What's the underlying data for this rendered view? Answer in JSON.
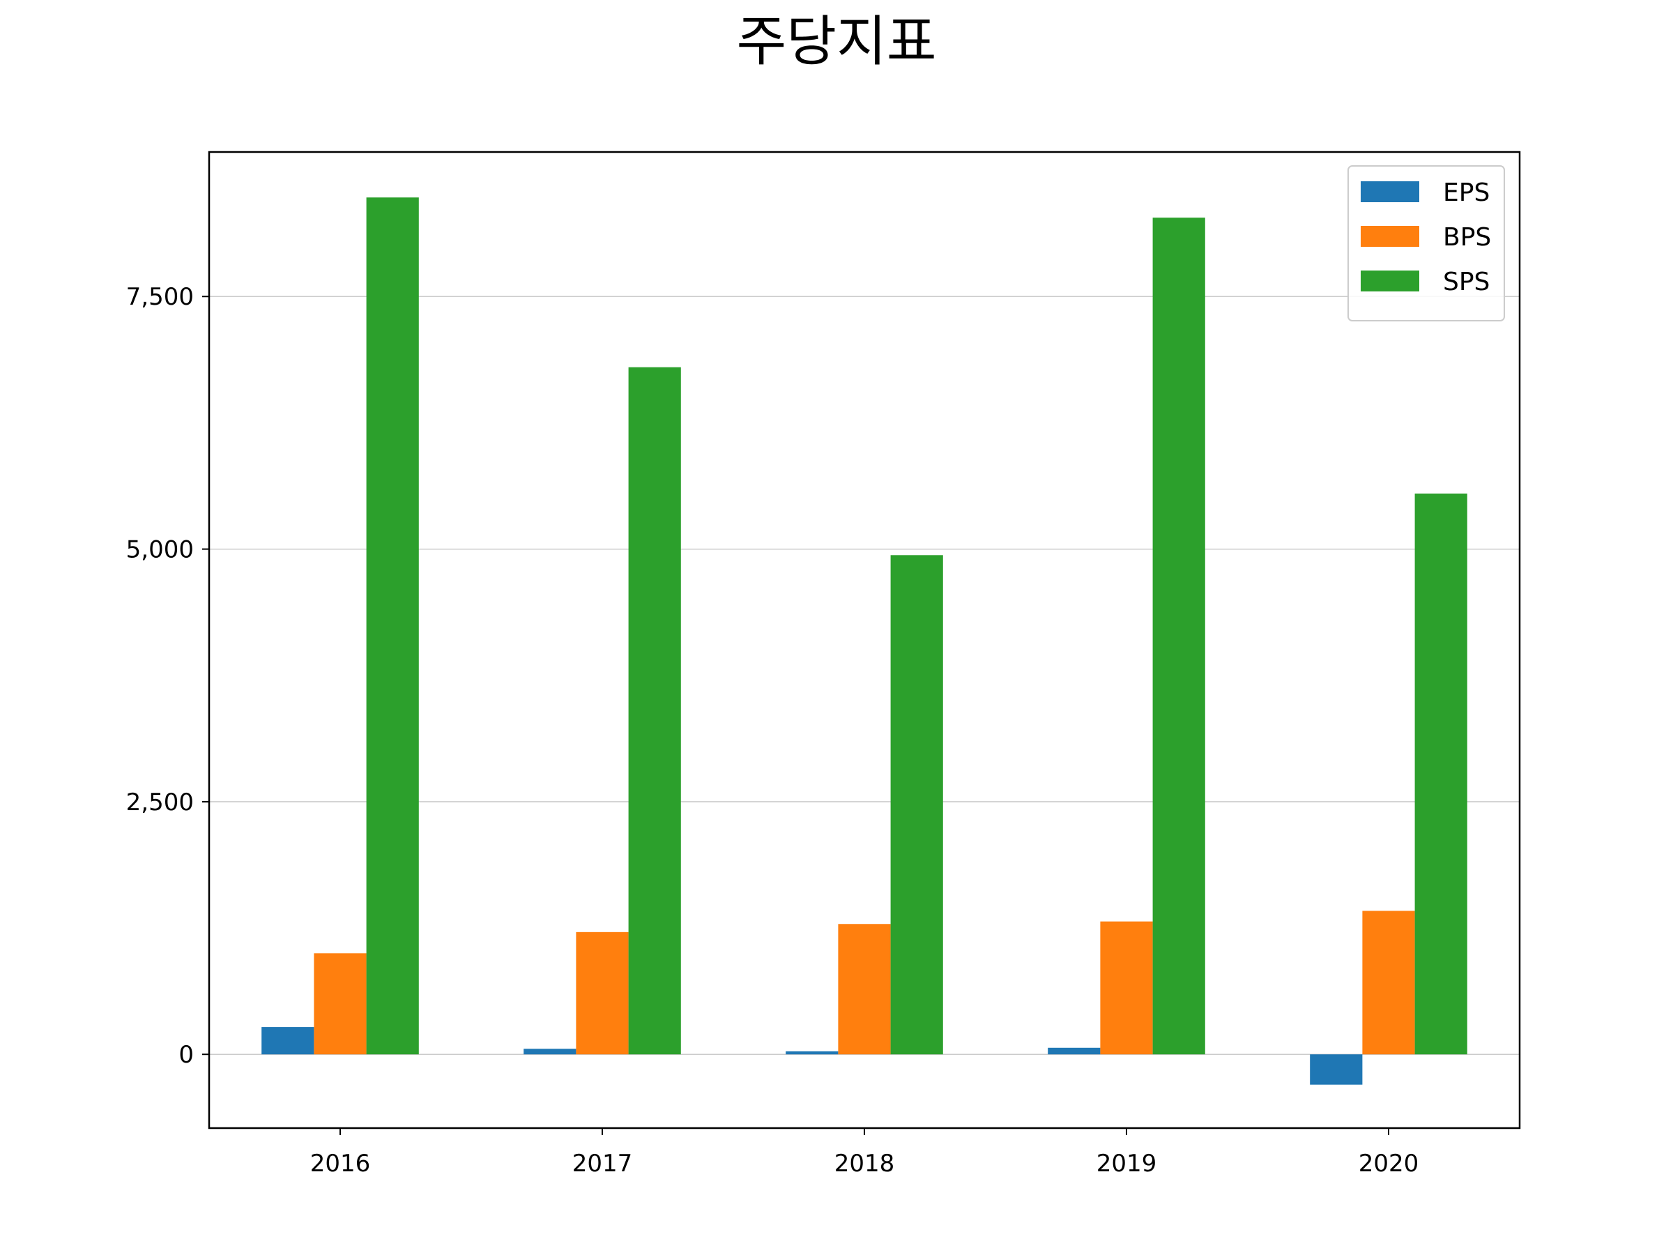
{
  "chart_data": {
    "type": "bar",
    "title": "주당지표",
    "xlabel": "",
    "ylabel": "",
    "categories": [
      "2016",
      "2017",
      "2018",
      "2019",
      "2020"
    ],
    "series": [
      {
        "name": "EPS",
        "color": "#1f77b4",
        "values": [
          270,
          55,
          30,
          65,
          -300
        ]
      },
      {
        "name": "BPS",
        "color": "#ff7f0e",
        "values": [
          1000,
          1210,
          1290,
          1315,
          1420
        ]
      },
      {
        "name": "SPS",
        "color": "#2ca02c",
        "values": [
          8480,
          6800,
          4940,
          8280,
          5550
        ]
      }
    ],
    "ylim": [
      -730,
      8930
    ],
    "yticks": [
      0,
      2500,
      5000,
      7500
    ],
    "ytick_labels": [
      "0",
      "2,500",
      "5,000",
      "7,500"
    ],
    "grid": {
      "y": true,
      "x": false
    },
    "legend": {
      "position": "top-right"
    }
  }
}
